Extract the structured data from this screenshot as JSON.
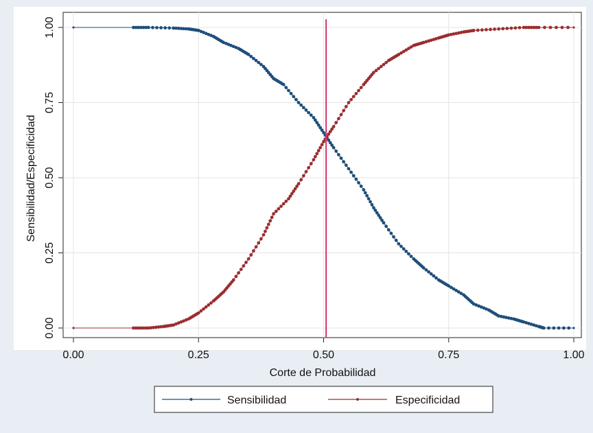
{
  "chart_data": {
    "type": "line",
    "title": "",
    "xlabel": "Corte de Probabilidad",
    "ylabel": "Sensibilidad/Especificidad",
    "xlim": [
      0,
      1
    ],
    "ylim": [
      0,
      1
    ],
    "xticks": [
      "0.00",
      "0.25",
      "0.50",
      "0.75",
      "1.00"
    ],
    "yticks": [
      "0.00",
      "0.25",
      "0.50",
      "0.75",
      "1.00"
    ],
    "grid": true,
    "legend_position": "bottom",
    "cutoff_line": {
      "x": 0.505,
      "color": "#d6336c"
    },
    "series": [
      {
        "name": "Sensibilidad",
        "color": "#1f4e79",
        "points": [
          [
            0.0,
            1.0
          ],
          [
            0.12,
            1.0
          ],
          [
            0.15,
            1.0
          ],
          [
            0.2,
            0.998
          ],
          [
            0.23,
            0.995
          ],
          [
            0.25,
            0.99
          ],
          [
            0.28,
            0.97
          ],
          [
            0.3,
            0.95
          ],
          [
            0.33,
            0.93
          ],
          [
            0.35,
            0.91
          ],
          [
            0.38,
            0.87
          ],
          [
            0.4,
            0.83
          ],
          [
            0.42,
            0.81
          ],
          [
            0.45,
            0.75
          ],
          [
            0.48,
            0.7
          ],
          [
            0.5,
            0.65
          ],
          [
            0.52,
            0.6
          ],
          [
            0.55,
            0.53
          ],
          [
            0.58,
            0.46
          ],
          [
            0.6,
            0.4
          ],
          [
            0.62,
            0.35
          ],
          [
            0.65,
            0.28
          ],
          [
            0.68,
            0.23
          ],
          [
            0.7,
            0.2
          ],
          [
            0.73,
            0.16
          ],
          [
            0.75,
            0.14
          ],
          [
            0.78,
            0.11
          ],
          [
            0.8,
            0.08
          ],
          [
            0.83,
            0.06
          ],
          [
            0.85,
            0.04
          ],
          [
            0.88,
            0.03
          ],
          [
            0.9,
            0.02
          ],
          [
            0.93,
            0.005
          ],
          [
            0.94,
            0.0
          ],
          [
            1.0,
            0.0
          ]
        ]
      },
      {
        "name": "Especificidad",
        "color": "#9b2d30",
        "points": [
          [
            0.0,
            0.0
          ],
          [
            0.12,
            0.0
          ],
          [
            0.15,
            0.0
          ],
          [
            0.18,
            0.005
          ],
          [
            0.2,
            0.01
          ],
          [
            0.23,
            0.03
          ],
          [
            0.25,
            0.05
          ],
          [
            0.28,
            0.09
          ],
          [
            0.3,
            0.12
          ],
          [
            0.32,
            0.16
          ],
          [
            0.35,
            0.23
          ],
          [
            0.38,
            0.31
          ],
          [
            0.4,
            0.38
          ],
          [
            0.43,
            0.43
          ],
          [
            0.45,
            0.48
          ],
          [
            0.48,
            0.56
          ],
          [
            0.5,
            0.62
          ],
          [
            0.52,
            0.67
          ],
          [
            0.55,
            0.75
          ],
          [
            0.58,
            0.81
          ],
          [
            0.6,
            0.85
          ],
          [
            0.63,
            0.89
          ],
          [
            0.65,
            0.91
          ],
          [
            0.68,
            0.94
          ],
          [
            0.7,
            0.95
          ],
          [
            0.73,
            0.965
          ],
          [
            0.75,
            0.975
          ],
          [
            0.78,
            0.985
          ],
          [
            0.8,
            0.99
          ],
          [
            0.85,
            0.995
          ],
          [
            0.9,
            1.0
          ],
          [
            0.93,
            1.0
          ],
          [
            1.0,
            1.0
          ]
        ]
      }
    ]
  }
}
